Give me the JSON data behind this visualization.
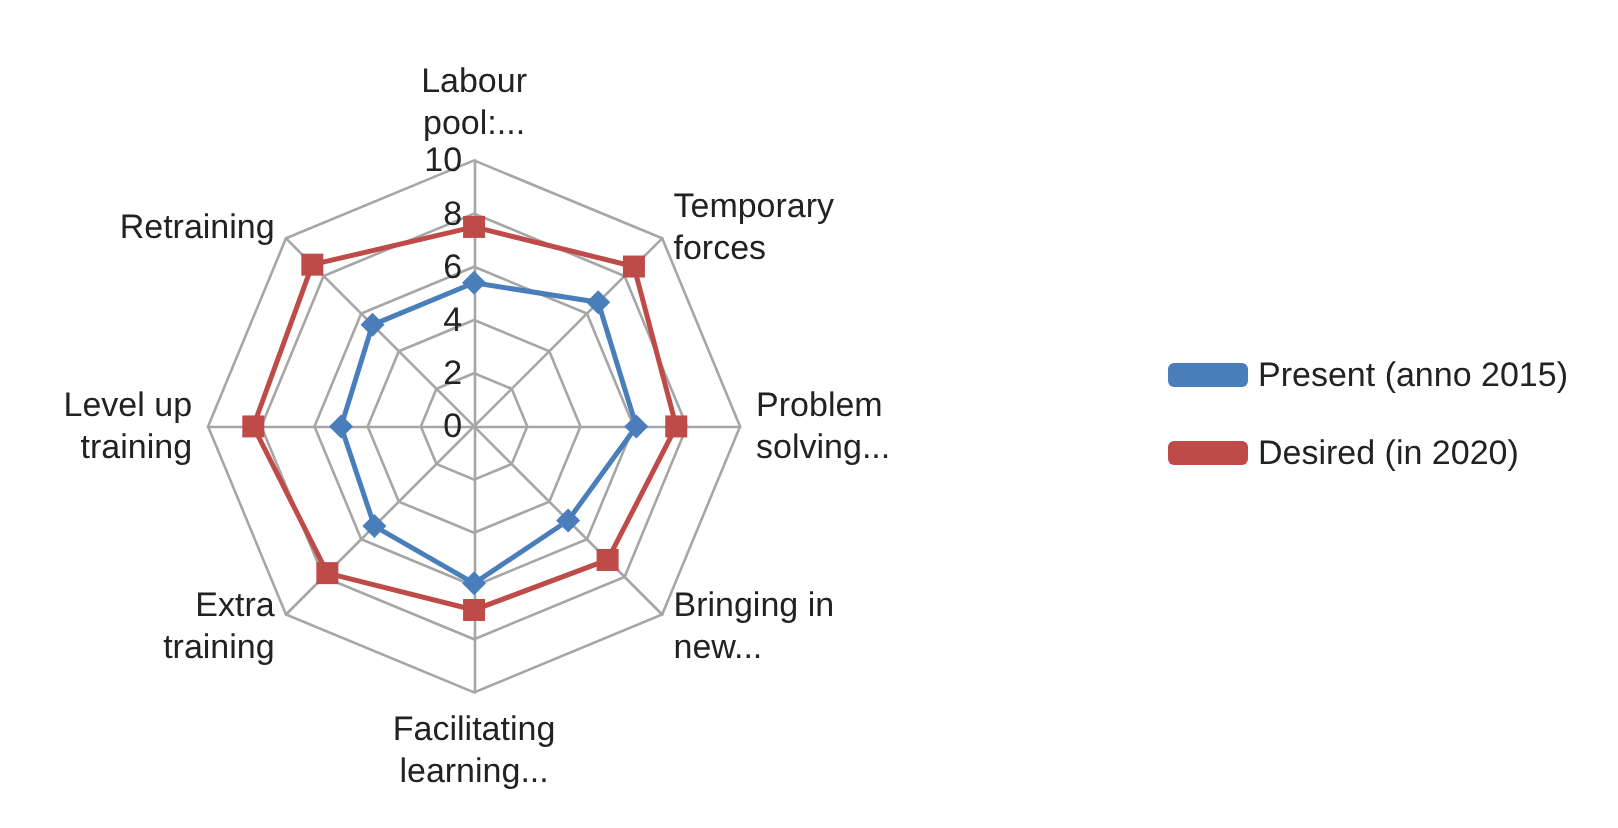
{
  "chart_data": {
    "type": "radar",
    "categories": [
      "Labour pool:...",
      "Temporary forces",
      "Problem solving...",
      "Bringing in new...",
      "Facilitating learning...",
      "Extra training",
      "Level up training",
      "Retraining"
    ],
    "series": [
      {
        "name": "Present (anno 2015)",
        "color": "#4a7ebb",
        "marker": "diamond",
        "values": [
          5.4,
          6.6,
          6.1,
          5.0,
          5.9,
          5.3,
          5.0,
          5.4
        ]
      },
      {
        "name": "Desired (in 2020)",
        "color": "#be4b48",
        "marker": "square",
        "values": [
          7.5,
          8.5,
          7.6,
          7.1,
          6.9,
          7.8,
          8.3,
          8.6
        ]
      }
    ],
    "ylim": [
      0,
      10
    ],
    "yticks": [
      0,
      2,
      4,
      6,
      8,
      10
    ],
    "grid": true,
    "legend": "right"
  }
}
